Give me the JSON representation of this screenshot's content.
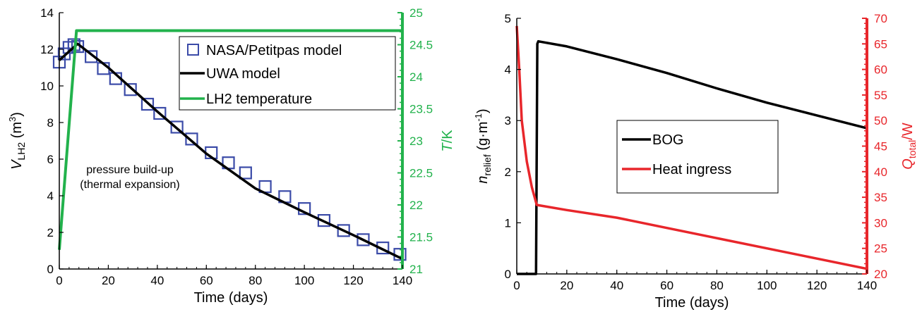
{
  "colors": {
    "nasa": "#3b4ba8",
    "uwa": "#000000",
    "lh2_temp": "#22b24c",
    "bog": "#000000",
    "heat": "#e8262b",
    "axis": "#000000"
  },
  "chart_data": [
    {
      "type": "line",
      "xlabel": "Time (days)",
      "ylabel": {
        "main": "V",
        "sub": "LH2",
        "unit": " (m",
        "sup": "3",
        "close": ")"
      },
      "y2label": {
        "main": "T",
        "rest": "/K"
      },
      "xlim": [
        0,
        140
      ],
      "ylim": [
        0,
        14
      ],
      "y2lim": [
        21,
        25
      ],
      "xticks": [
        0,
        20,
        40,
        60,
        80,
        100,
        120,
        140
      ],
      "yticks": [
        0,
        2,
        4,
        6,
        8,
        10,
        12,
        14
      ],
      "y2ticks": [
        21,
        21.5,
        22,
        22.5,
        23,
        23.5,
        24,
        24.5,
        25
      ],
      "legend_position": "top-right",
      "annotation": [
        "pressure build-up",
        "(thermal expansion)"
      ],
      "series": [
        {
          "name": "NASA/Petitpas model",
          "marker": "square",
          "axis": "left",
          "x": [
            0,
            2,
            4,
            6,
            7.5,
            13,
            18,
            23,
            29,
            36,
            41,
            48,
            54,
            62,
            69,
            76,
            84,
            92,
            100,
            108,
            116,
            124,
            132,
            139
          ],
          "y": [
            11.3,
            11.75,
            12.1,
            12.25,
            12.15,
            11.6,
            10.95,
            10.4,
            9.8,
            9.0,
            8.5,
            7.75,
            7.1,
            6.35,
            5.8,
            5.25,
            4.5,
            3.95,
            3.3,
            2.65,
            2.1,
            1.6,
            1.15,
            0.8
          ]
        },
        {
          "name": "UWA model",
          "axis": "left",
          "x": [
            0,
            7.5,
            20,
            40,
            60,
            80,
            100,
            120,
            140
          ],
          "y": [
            11.4,
            12.3,
            11.0,
            8.6,
            6.3,
            4.4,
            3.1,
            1.85,
            0.55
          ]
        },
        {
          "name": "LH2 temperature",
          "axis": "right",
          "x": [
            0,
            7,
            140
          ],
          "y": [
            21.3,
            24.72,
            24.72
          ]
        }
      ]
    },
    {
      "type": "line",
      "xlabel": "Time (days)",
      "ylabel": {
        "main": "n",
        "sub": "relief",
        "unit": " (g·m",
        "sup": "-1",
        "close": ")"
      },
      "y2label": {
        "main": "Q",
        "sub": "total",
        "rest": "/W"
      },
      "xlim": [
        0,
        140
      ],
      "ylim": [
        0,
        5
      ],
      "y2lim": [
        20,
        70
      ],
      "xticks": [
        0,
        20,
        40,
        60,
        80,
        100,
        120,
        140
      ],
      "yticks": [
        0,
        1,
        2,
        3,
        4,
        5
      ],
      "y2ticks": [
        20,
        25,
        30,
        35,
        40,
        45,
        50,
        55,
        60,
        65,
        70
      ],
      "legend_position": "center",
      "series": [
        {
          "name": "BOG",
          "axis": "left",
          "x": [
            0,
            7.7,
            8.2,
            8.6,
            20,
            40,
            60,
            80,
            100,
            120,
            140
          ],
          "y": [
            0,
            0,
            4.5,
            4.55,
            4.45,
            4.2,
            3.93,
            3.63,
            3.35,
            3.1,
            2.85
          ]
        },
        {
          "name": "Heat ingress",
          "axis": "right",
          "x": [
            0,
            1,
            2,
            4,
            6,
            8,
            20,
            40,
            60,
            80,
            100,
            120,
            140
          ],
          "y": [
            68.5,
            60,
            50,
            42,
            37,
            33.5,
            32.5,
            31,
            29,
            27,
            25,
            23,
            21
          ]
        }
      ]
    }
  ]
}
